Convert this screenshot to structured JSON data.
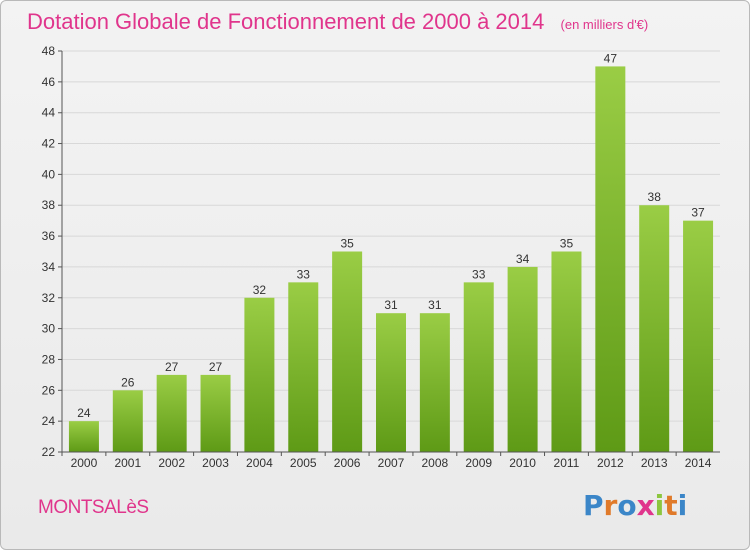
{
  "title": "Dotation Globale de Fonctionnement de 2000 à 2014",
  "subtitle": "(en milliers d'€)",
  "town": "MONTSALèS",
  "logo": {
    "text": "Proxiti",
    "letters": [
      {
        "ch": "P",
        "color": "#3b86c8"
      },
      {
        "ch": "r",
        "color": "#e07a2a"
      },
      {
        "ch": "o",
        "color": "#3b86c8"
      },
      {
        "ch": "x",
        "color": "#e0358c"
      },
      {
        "ch": "i",
        "color": "#8cc63f"
      },
      {
        "ch": "t",
        "color": "#e07a2a"
      },
      {
        "ch": "i",
        "color": "#3b86c8"
      }
    ]
  },
  "colors": {
    "title": "#e0358c",
    "bar_top": "#9acd45",
    "bar_bottom": "#5e9a16",
    "grid": "#d8d8d8",
    "axis": "#555555"
  },
  "chart_data": {
    "type": "bar",
    "categories": [
      "2000",
      "2001",
      "2002",
      "2003",
      "2004",
      "2005",
      "2006",
      "2007",
      "2008",
      "2009",
      "2010",
      "2011",
      "2012",
      "2013",
      "2014"
    ],
    "values": [
      24,
      26,
      27,
      27,
      32,
      33,
      35,
      31,
      31,
      33,
      34,
      35,
      47,
      38,
      37
    ],
    "title": "Dotation Globale de Fonctionnement de 2000 à 2014",
    "xlabel": "",
    "ylabel": "",
    "ylim": [
      22,
      48
    ],
    "yticks": [
      22,
      24,
      26,
      28,
      30,
      32,
      34,
      36,
      38,
      40,
      42,
      44,
      46,
      48
    ],
    "grid": true,
    "data_labels": true
  }
}
